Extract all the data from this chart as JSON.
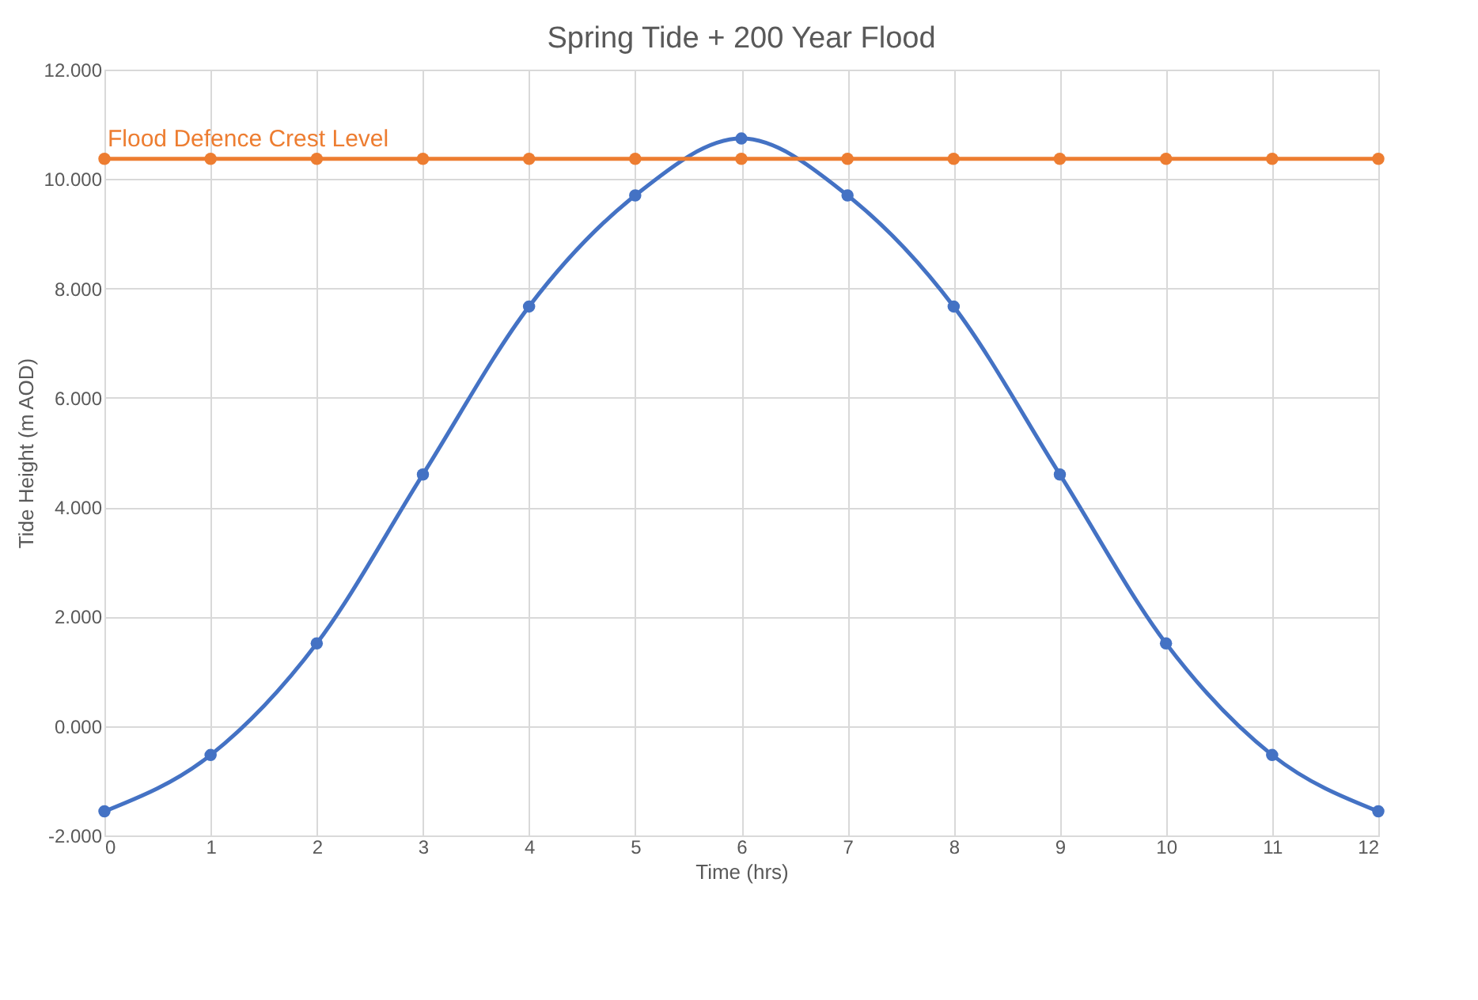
{
  "chart_data": {
    "type": "line",
    "title": "Spring Tide + 200 Year Flood",
    "xlabel": "Time (hrs)",
    "ylabel": "Tide Height (m AOD)",
    "x": [
      0,
      1,
      2,
      3,
      4,
      5,
      6,
      7,
      8,
      9,
      10,
      11,
      12
    ],
    "series": [
      {
        "color": "#4472c4",
        "values": [
          -1.56,
          -0.53,
          1.51,
          4.6,
          7.67,
          9.7,
          10.74,
          9.7,
          7.67,
          4.6,
          1.51,
          -0.53,
          -1.56
        ]
      },
      {
        "name": "Flood Defence Crest Level",
        "color": "#ed7d31",
        "values": [
          10.37,
          10.37,
          10.37,
          10.37,
          10.37,
          10.37,
          10.37,
          10.37,
          10.37,
          10.37,
          10.37,
          10.37,
          10.37
        ]
      }
    ],
    "xlim": [
      0,
      12
    ],
    "xticks": [
      0,
      1,
      2,
      3,
      4,
      5,
      6,
      7,
      8,
      9,
      10,
      11,
      12
    ],
    "ylim": [
      -2,
      12
    ],
    "yticks": [
      {
        "value": -2,
        "label": "-2.000"
      },
      {
        "value": 0,
        "label": "0.000"
      },
      {
        "value": 2,
        "label": "2.000"
      },
      {
        "value": 4,
        "label": "4.000"
      },
      {
        "value": 6,
        "label": "6.000"
      },
      {
        "value": 8,
        "label": "8.000"
      },
      {
        "value": 10,
        "label": "10.000"
      },
      {
        "value": 12,
        "label": "12.000"
      }
    ],
    "grid": true,
    "marker": "circle",
    "legend": false
  }
}
